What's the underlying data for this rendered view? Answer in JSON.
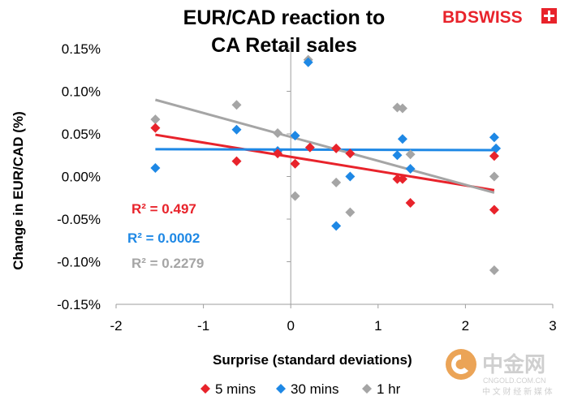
{
  "brand": {
    "bd": "BD",
    "swiss": "SWISS"
  },
  "watermark": {
    "cn": "中金网",
    "domain": "CNGOLD.COM.CN",
    "sub": "中 文 财 经 新 媒 体"
  },
  "chart_data": {
    "type": "scatter",
    "title": [
      "EUR/CAD reaction to",
      "CA Retail sales"
    ],
    "xlabel": "Surprise (standard deviations)",
    "ylabel": "Change in EUR/CAD (%)",
    "xlim": [
      -2,
      3
    ],
    "ylim": [
      -0.15,
      0.15
    ],
    "x_ticks": [
      "-2",
      "-1",
      "0",
      "1",
      "2",
      "3"
    ],
    "y_ticks": [
      "0.15%",
      "0.10%",
      "0.05%",
      "0.00%",
      "-0.05%",
      "-0.10%",
      "-0.15%"
    ],
    "grid": false,
    "legend_position": "bottom",
    "series": [
      {
        "name": "5 mins",
        "color": "#e8232b",
        "marker": "diamond",
        "points": [
          [
            -1.55,
            0.057
          ],
          [
            -0.62,
            0.018
          ],
          [
            -0.15,
            0.027
          ],
          [
            0.22,
            0.034
          ],
          [
            0.05,
            0.015
          ],
          [
            0.52,
            0.033
          ],
          [
            0.68,
            0.027
          ],
          [
            1.22,
            -0.003
          ],
          [
            1.28,
            -0.003
          ],
          [
            1.37,
            -0.031
          ],
          [
            2.33,
            0.024
          ],
          [
            2.33,
            -0.039
          ]
        ],
        "trendline": {
          "y_at_xmin": 0.049,
          "y_at_xmax": -0.016,
          "x_start": -1.55,
          "x_end": 2.33
        },
        "r_squared": "R² = 0.497"
      },
      {
        "name": "30 mins",
        "color": "#1e88e5",
        "marker": "diamond",
        "points": [
          [
            -1.55,
            0.01
          ],
          [
            -0.62,
            0.055
          ],
          [
            -0.15,
            0.03
          ],
          [
            0.05,
            0.048
          ],
          [
            0.2,
            0.134
          ],
          [
            0.52,
            -0.058
          ],
          [
            0.68,
            0.0
          ],
          [
            1.22,
            0.025
          ],
          [
            1.28,
            0.044
          ],
          [
            1.37,
            0.009
          ],
          [
            2.33,
            0.046
          ],
          [
            2.35,
            0.033
          ]
        ],
        "trendline": {
          "y_at_xmin": 0.032,
          "y_at_xmax": 0.031,
          "x_start": -1.55,
          "x_end": 2.33
        },
        "r_squared": "R² = 0.0002"
      },
      {
        "name": "1 hr",
        "color": "#a5a5a5",
        "marker": "diamond",
        "points": [
          [
            -1.55,
            0.067
          ],
          [
            -0.62,
            0.084
          ],
          [
            -0.15,
            0.051
          ],
          [
            0.05,
            -0.023
          ],
          [
            0.2,
            0.137
          ],
          [
            0.52,
            -0.007
          ],
          [
            0.68,
            -0.042
          ],
          [
            1.22,
            0.081
          ],
          [
            1.28,
            0.08
          ],
          [
            1.37,
            0.026
          ],
          [
            2.33,
            0.0
          ],
          [
            2.33,
            -0.11
          ]
        ],
        "trendline": {
          "y_at_xmin": 0.09,
          "y_at_xmax": -0.019,
          "x_start": -1.55,
          "x_end": 2.33
        },
        "r_squared": "R² = 0.2279"
      }
    ]
  }
}
